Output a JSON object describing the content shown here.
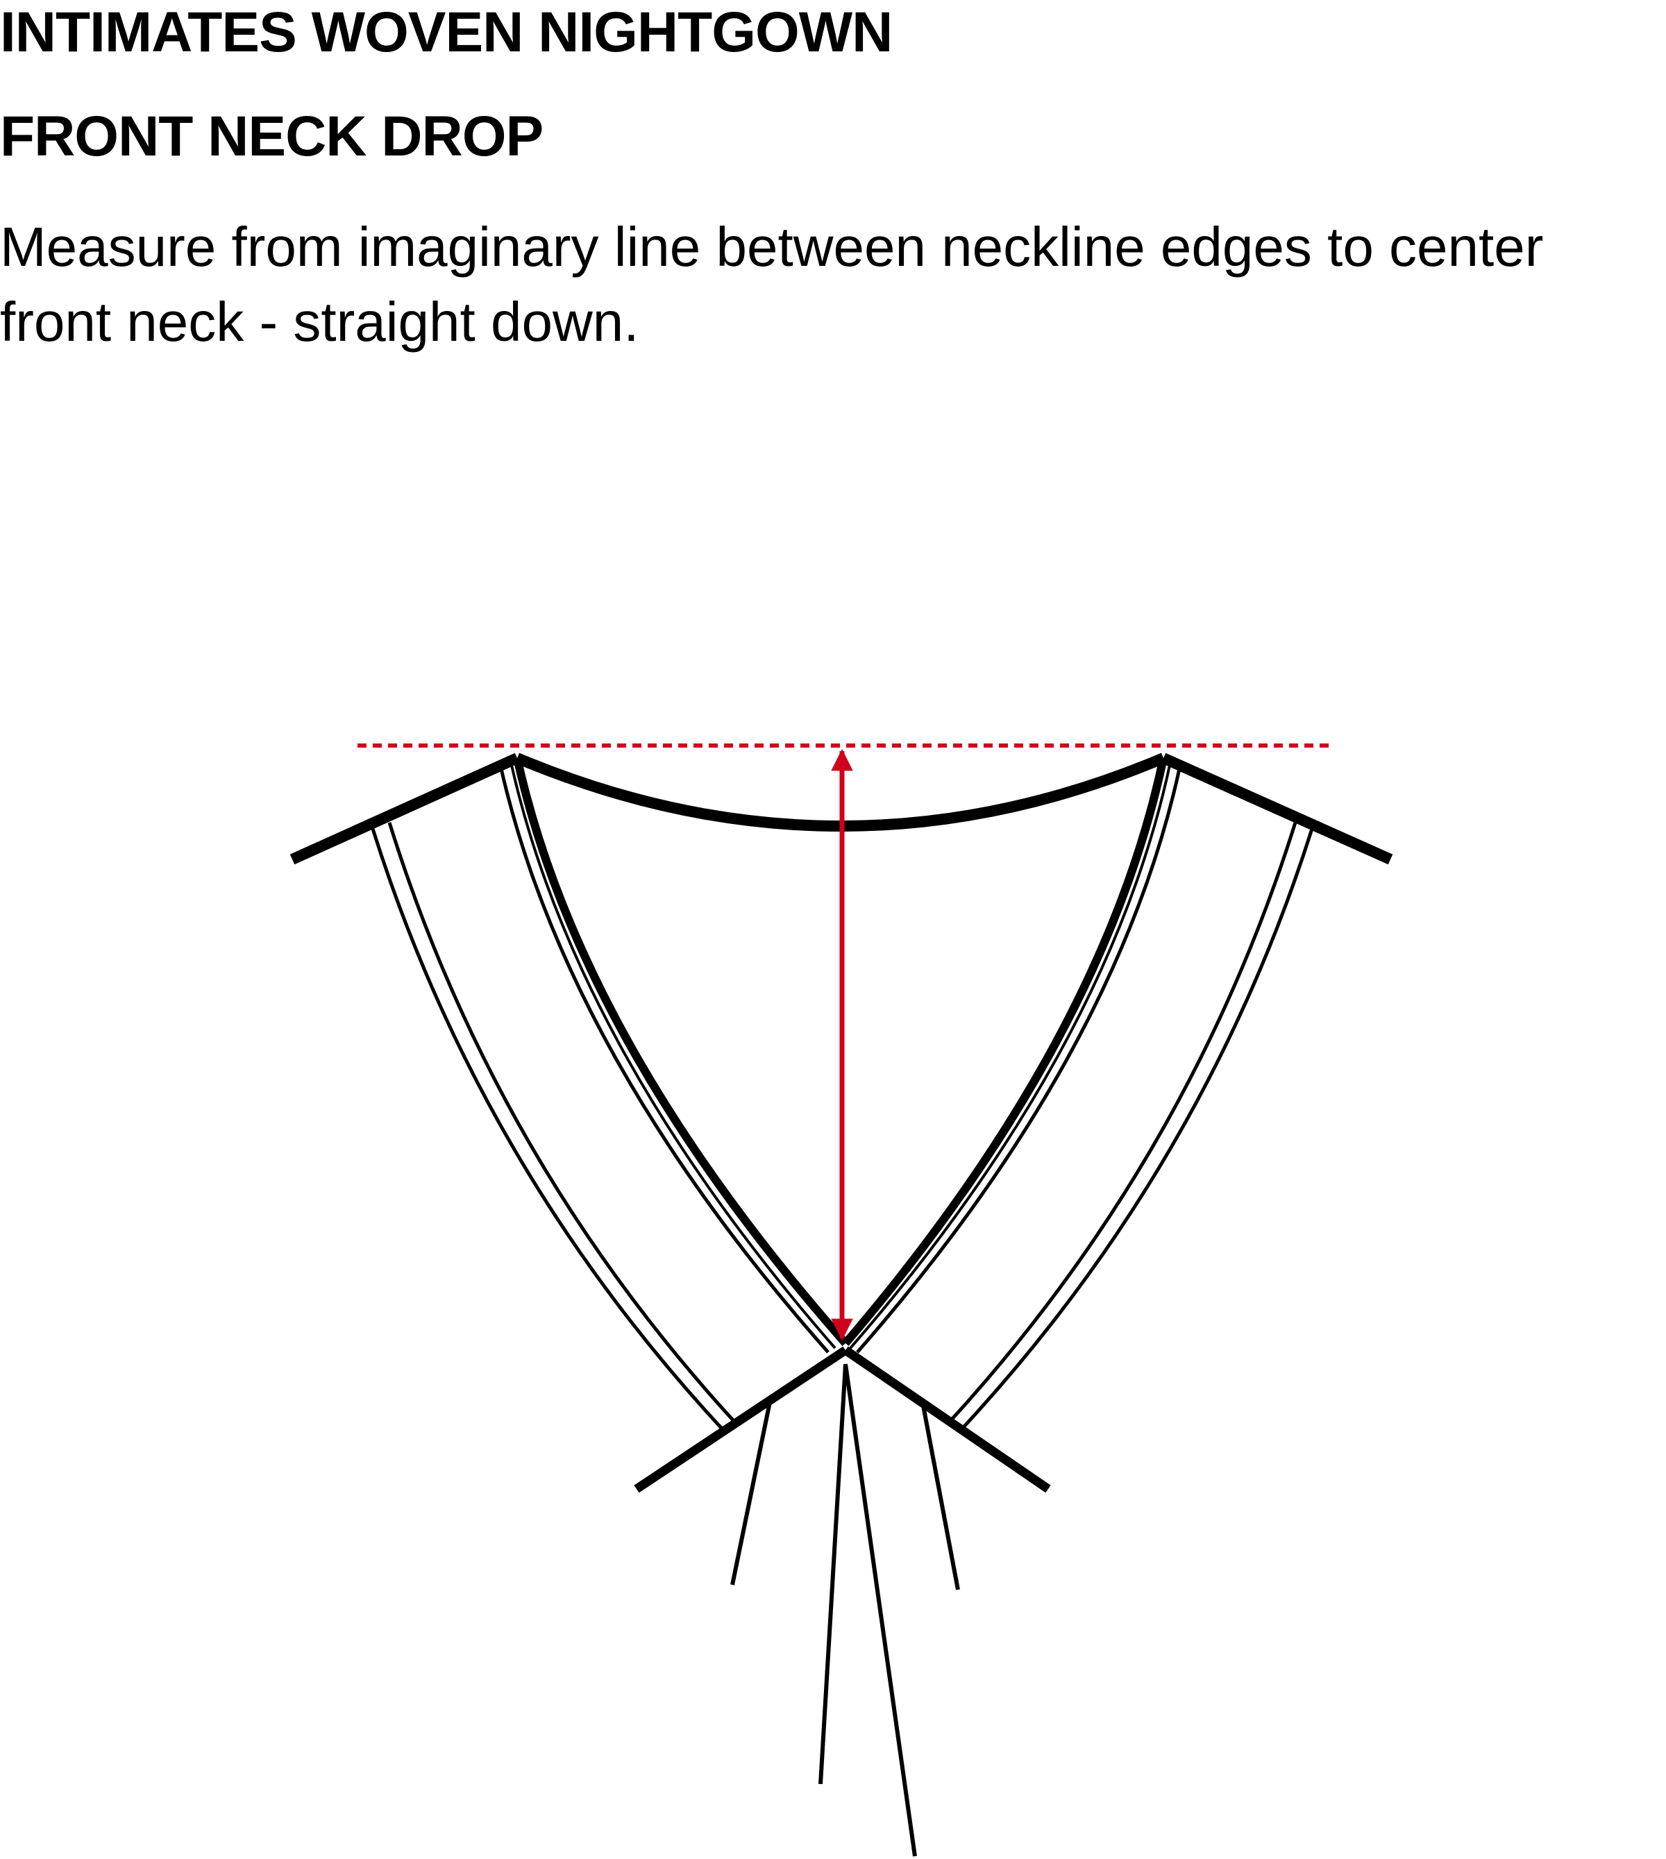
{
  "header": {
    "title": "INTIMATES WOVEN NIGHTGOWN",
    "subtitle": "FRONT NECK DROP"
  },
  "instruction": {
    "text": "Measure from imaginary line between neckline edges to center front neck - straight down."
  },
  "colors": {
    "measure": "#d0021b",
    "garment": "#000000",
    "background": "#ffffff"
  },
  "diagram": {
    "measurement": "front-neck-drop",
    "direction": "vertical"
  }
}
